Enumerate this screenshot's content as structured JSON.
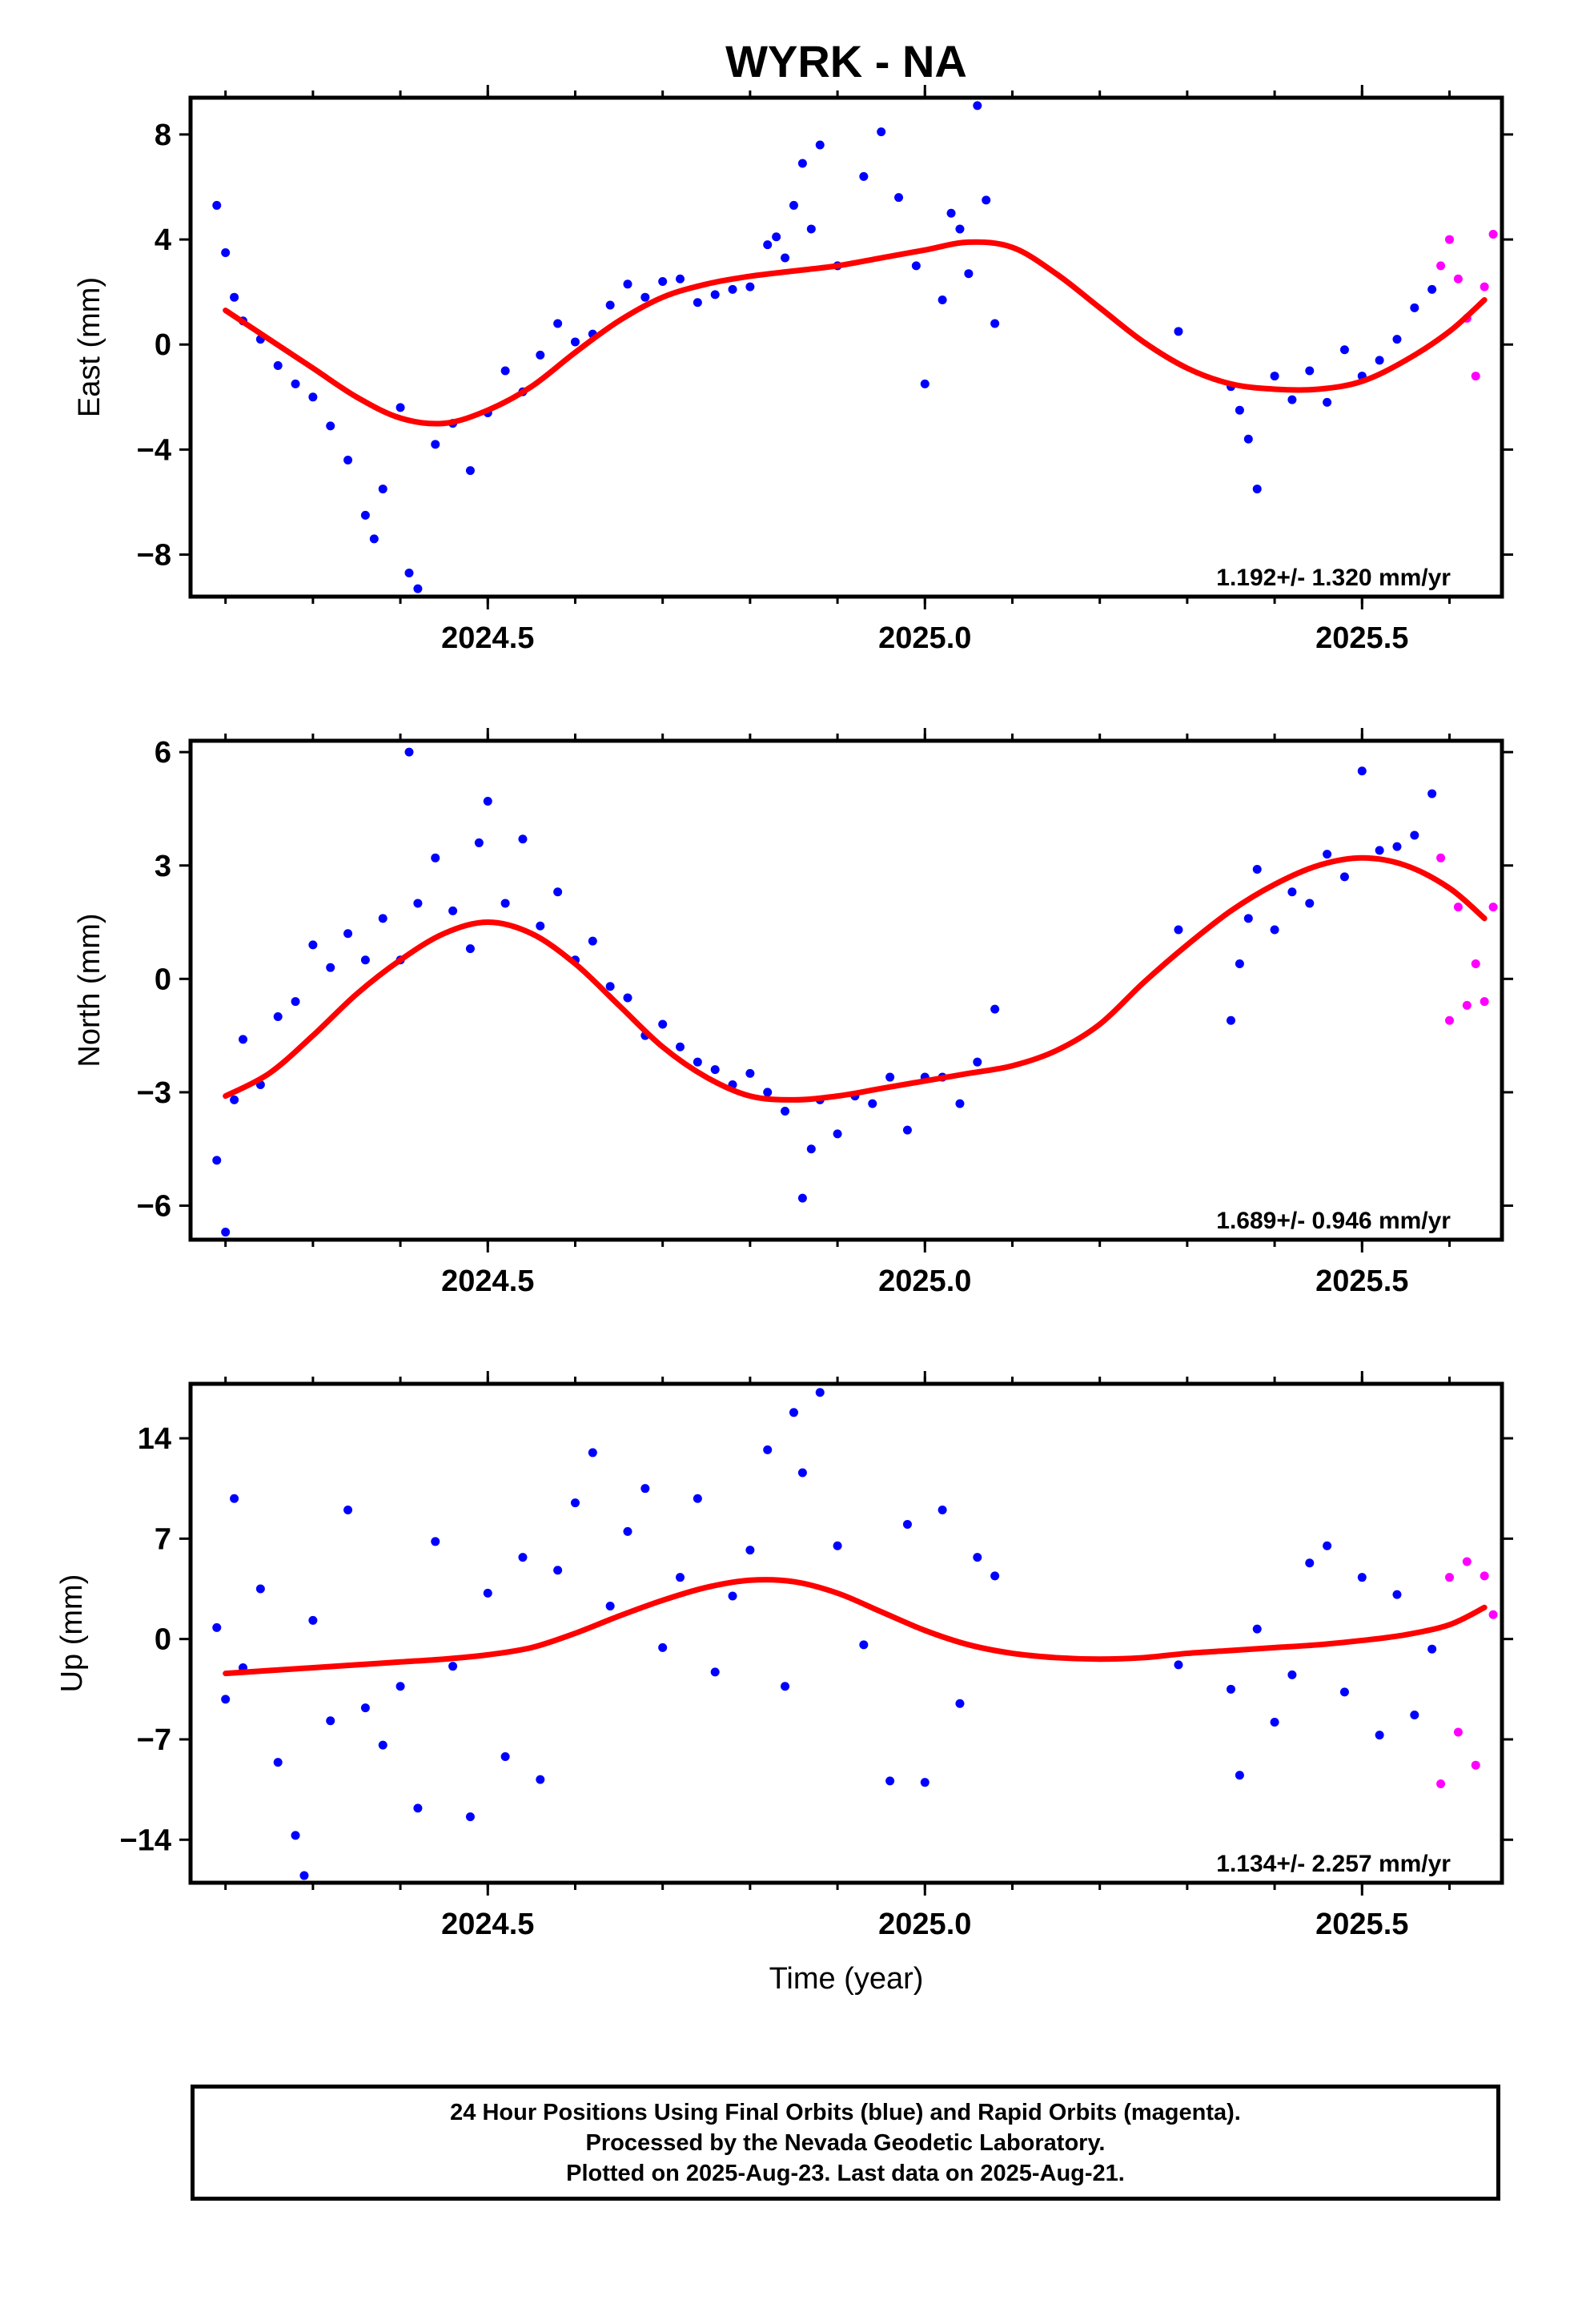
{
  "figure": {
    "title": "WYRK - NA",
    "xlabel": "Time (year)",
    "caption": [
      "24 Hour Positions Using Final Orbits (blue) and Rapid Orbits (magenta).",
      "Processed by the Nevada Geodetic Laboratory.",
      "Plotted on 2025-Aug-23. Last data on 2025-Aug-21."
    ]
  },
  "colors": {
    "final": "#0000ff",
    "rapid": "#ff00ff",
    "fit": "#ff0000",
    "frame": "#000000"
  },
  "chart_data": [
    {
      "type": "scatter",
      "ylabel": "East (mm)",
      "rate": "1.192+/- 1.320 mm/yr",
      "xlim": [
        2024.16,
        2025.66
      ],
      "ylim": [
        -9.6,
        9.4
      ],
      "xticks": [
        2024.5,
        2025.0,
        2025.5
      ],
      "xtick_labels": [
        "2024.5",
        "2025.0",
        "2025.5"
      ],
      "yticks": [
        -8,
        -4,
        0,
        4,
        8
      ],
      "ytick_labels": [
        "−8",
        "−4",
        "0",
        "4",
        "8"
      ],
      "series": [
        {
          "role": "final",
          "x": [
            2024.19,
            2024.2,
            2024.21,
            2024.22,
            2024.24,
            2024.26,
            2024.28,
            2024.3,
            2024.32,
            2024.34,
            2024.36,
            2024.37,
            2024.38,
            2024.4,
            2024.41,
            2024.42,
            2024.44,
            2024.46,
            2024.48,
            2024.5,
            2024.52,
            2024.54,
            2024.56,
            2024.58,
            2024.6,
            2024.62,
            2024.64,
            2024.66,
            2024.68,
            2024.7,
            2024.72,
            2024.74,
            2024.76,
            2024.78,
            2024.8,
            2024.82,
            2024.83,
            2024.84,
            2024.85,
            2024.86,
            2024.87,
            2024.88,
            2024.9,
            2024.93,
            2024.95,
            2024.97,
            2024.99,
            2025.0,
            2025.02,
            2025.03,
            2025.04,
            2025.05,
            2025.06,
            2025.07,
            2025.08,
            2025.29,
            2025.35,
            2025.36,
            2025.37,
            2025.38,
            2025.4,
            2025.42,
            2025.44,
            2025.46,
            2025.48,
            2025.5,
            2025.52,
            2025.54,
            2025.56,
            2025.58
          ],
          "y": [
            5.3,
            3.5,
            1.8,
            0.9,
            0.2,
            -0.8,
            -1.5,
            -2.0,
            -3.1,
            -4.4,
            -6.5,
            -7.4,
            -5.5,
            -2.4,
            -8.7,
            -9.3,
            -3.8,
            -3.0,
            -4.8,
            -2.6,
            -1.0,
            -1.8,
            -0.4,
            0.8,
            0.1,
            0.4,
            1.5,
            2.3,
            1.8,
            2.4,
            2.5,
            1.6,
            1.9,
            2.1,
            2.2,
            3.8,
            4.1,
            3.3,
            5.3,
            6.9,
            4.4,
            7.6,
            3.0,
            6.4,
            8.1,
            5.6,
            3.0,
            -1.5,
            1.7,
            5.0,
            4.4,
            2.7,
            9.1,
            5.5,
            0.8,
            0.5,
            -1.6,
            -2.5,
            -3.6,
            -5.5,
            -1.2,
            -2.1,
            -1.0,
            -2.2,
            -0.2,
            -1.2,
            -0.6,
            0.2,
            1.4,
            2.1
          ]
        },
        {
          "role": "rapid",
          "x": [
            2025.59,
            2025.6,
            2025.61,
            2025.62,
            2025.63,
            2025.64,
            2025.65
          ],
          "y": [
            3.0,
            4.0,
            2.5,
            1.0,
            -1.2,
            2.2,
            4.2
          ]
        },
        {
          "role": "fit",
          "x": [
            2024.2,
            2024.25,
            2024.3,
            2024.35,
            2024.4,
            2024.45,
            2024.5,
            2024.55,
            2024.6,
            2024.65,
            2024.7,
            2024.75,
            2024.8,
            2024.85,
            2024.9,
            2024.95,
            2025.0,
            2025.05,
            2025.1,
            2025.15,
            2025.2,
            2025.25,
            2025.3,
            2025.35,
            2025.4,
            2025.45,
            2025.5,
            2025.55,
            2025.6,
            2025.64
          ],
          "y": [
            1.3,
            0.2,
            -0.9,
            -2.0,
            -2.8,
            -3.0,
            -2.5,
            -1.6,
            -0.3,
            0.9,
            1.8,
            2.3,
            2.6,
            2.8,
            3.0,
            3.3,
            3.6,
            3.9,
            3.7,
            2.7,
            1.4,
            0.1,
            -0.9,
            -1.5,
            -1.7,
            -1.7,
            -1.4,
            -0.6,
            0.5,
            1.7
          ]
        }
      ]
    },
    {
      "type": "scatter",
      "ylabel": "North (mm)",
      "rate": "1.689+/- 0.946 mm/yr",
      "xlim": [
        2024.16,
        2025.66
      ],
      "ylim": [
        -6.9,
        6.3
      ],
      "xticks": [
        2024.5,
        2025.0,
        2025.5
      ],
      "xtick_labels": [
        "2024.5",
        "2025.0",
        "2025.5"
      ],
      "yticks": [
        -6,
        -3,
        0,
        3,
        6
      ],
      "ytick_labels": [
        "−6",
        "−3",
        "0",
        "3",
        "6"
      ],
      "series": [
        {
          "role": "final",
          "x": [
            2024.19,
            2024.2,
            2024.21,
            2024.22,
            2024.24,
            2024.26,
            2024.28,
            2024.3,
            2024.32,
            2024.34,
            2024.36,
            2024.38,
            2024.4,
            2024.41,
            2024.42,
            2024.44,
            2024.46,
            2024.48,
            2024.49,
            2024.5,
            2024.52,
            2024.54,
            2024.56,
            2024.58,
            2024.6,
            2024.62,
            2024.64,
            2024.66,
            2024.68,
            2024.7,
            2024.72,
            2024.74,
            2024.76,
            2024.78,
            2024.8,
            2024.82,
            2024.84,
            2024.86,
            2024.87,
            2024.88,
            2024.9,
            2024.92,
            2024.94,
            2024.96,
            2024.98,
            2025.0,
            2025.02,
            2025.04,
            2025.06,
            2025.08,
            2025.29,
            2025.35,
            2025.36,
            2025.37,
            2025.38,
            2025.4,
            2025.42,
            2025.44,
            2025.46,
            2025.48,
            2025.5,
            2025.52,
            2025.54,
            2025.56,
            2025.58
          ],
          "y": [
            -4.8,
            -6.7,
            -3.2,
            -1.6,
            -2.8,
            -1.0,
            -0.6,
            0.9,
            0.3,
            1.2,
            0.5,
            1.6,
            0.5,
            6.0,
            2.0,
            3.2,
            1.8,
            0.8,
            3.6,
            4.7,
            2.0,
            3.7,
            1.4,
            2.3,
            0.5,
            1.0,
            -0.2,
            -0.5,
            -1.5,
            -1.2,
            -1.8,
            -2.2,
            -2.4,
            -2.8,
            -2.5,
            -3.0,
            -3.5,
            -5.8,
            -4.5,
            -3.2,
            -4.1,
            -3.1,
            -3.3,
            -2.6,
            -4.0,
            -2.6,
            -2.6,
            -3.3,
            -2.2,
            -0.8,
            1.3,
            -1.1,
            0.4,
            1.6,
            2.9,
            1.3,
            2.3,
            2.0,
            3.3,
            2.7,
            5.5,
            3.4,
            3.5,
            3.8,
            4.9
          ]
        },
        {
          "role": "rapid",
          "x": [
            2025.59,
            2025.6,
            2025.61,
            2025.62,
            2025.63,
            2025.64,
            2025.65
          ],
          "y": [
            3.2,
            -1.1,
            1.9,
            -0.7,
            0.4,
            -0.6,
            1.9
          ]
        },
        {
          "role": "fit",
          "x": [
            2024.2,
            2024.25,
            2024.3,
            2024.35,
            2024.4,
            2024.45,
            2024.5,
            2024.55,
            2024.6,
            2024.65,
            2024.7,
            2024.75,
            2024.8,
            2024.85,
            2024.9,
            2024.95,
            2025.0,
            2025.05,
            2025.1,
            2025.15,
            2025.2,
            2025.25,
            2025.3,
            2025.35,
            2025.4,
            2025.45,
            2025.5,
            2025.55,
            2025.6,
            2025.64
          ],
          "y": [
            -3.1,
            -2.5,
            -1.5,
            -0.4,
            0.5,
            1.2,
            1.5,
            1.2,
            0.4,
            -0.7,
            -1.8,
            -2.6,
            -3.1,
            -3.2,
            -3.1,
            -2.9,
            -2.7,
            -2.5,
            -2.3,
            -1.9,
            -1.2,
            -0.1,
            0.9,
            1.8,
            2.5,
            3.0,
            3.2,
            3.0,
            2.4,
            1.6
          ]
        }
      ]
    },
    {
      "type": "scatter",
      "ylabel": "Up (mm)",
      "rate": "1.134+/- 2.257 mm/yr",
      "xlim": [
        2024.16,
        2025.66
      ],
      "ylim": [
        -17.0,
        17.8
      ],
      "xticks": [
        2024.5,
        2025.0,
        2025.5
      ],
      "xtick_labels": [
        "2024.5",
        "2025.0",
        "2025.5"
      ],
      "yticks": [
        -14,
        -7,
        0,
        7,
        14
      ],
      "ytick_labels": [
        "−14",
        "−7",
        "0",
        "7",
        "14"
      ],
      "series": [
        {
          "role": "final",
          "x": [
            2024.19,
            2024.2,
            2024.21,
            2024.22,
            2024.24,
            2024.26,
            2024.28,
            2024.29,
            2024.3,
            2024.32,
            2024.34,
            2024.36,
            2024.38,
            2024.4,
            2024.42,
            2024.44,
            2024.46,
            2024.48,
            2024.5,
            2024.52,
            2024.54,
            2024.56,
            2024.58,
            2024.6,
            2024.62,
            2024.64,
            2024.66,
            2024.68,
            2024.7,
            2024.72,
            2024.74,
            2024.76,
            2024.78,
            2024.8,
            2024.82,
            2024.84,
            2024.85,
            2024.86,
            2024.88,
            2024.9,
            2024.93,
            2024.96,
            2024.98,
            2025.0,
            2025.02,
            2025.04,
            2025.06,
            2025.08,
            2025.29,
            2025.35,
            2025.36,
            2025.38,
            2025.4,
            2025.42,
            2025.44,
            2025.46,
            2025.48,
            2025.5,
            2025.52,
            2025.54,
            2025.56,
            2025.58
          ],
          "y": [
            0.8,
            -4.2,
            9.8,
            -2.0,
            3.5,
            -8.6,
            -13.7,
            -16.5,
            1.3,
            -5.7,
            9.0,
            -4.8,
            -7.4,
            -3.3,
            -11.8,
            6.8,
            -1.9,
            -12.4,
            3.2,
            -8.2,
            5.7,
            -9.8,
            4.8,
            9.5,
            13.0,
            2.3,
            7.5,
            10.5,
            -0.6,
            4.3,
            9.8,
            -2.3,
            3.0,
            6.2,
            13.2,
            -3.3,
            15.8,
            11.6,
            17.2,
            6.5,
            -0.4,
            -9.9,
            8.0,
            -10.0,
            9.0,
            -4.5,
            5.7,
            4.4,
            -1.8,
            -3.5,
            -9.5,
            0.7,
            -5.8,
            -2.5,
            5.3,
            6.5,
            -3.7,
            4.3,
            -6.7,
            3.1,
            -5.3,
            -0.7
          ]
        },
        {
          "role": "rapid",
          "x": [
            2025.59,
            2025.6,
            2025.61,
            2025.62,
            2025.63,
            2025.64,
            2025.65
          ],
          "y": [
            -10.1,
            4.3,
            -6.5,
            5.4,
            -8.8,
            4.4,
            1.7
          ]
        },
        {
          "role": "fit",
          "x": [
            2024.2,
            2024.25,
            2024.3,
            2024.35,
            2024.4,
            2024.45,
            2024.5,
            2024.55,
            2024.6,
            2024.65,
            2024.7,
            2024.75,
            2024.8,
            2024.85,
            2024.9,
            2024.95,
            2025.0,
            2025.05,
            2025.1,
            2025.15,
            2025.2,
            2025.25,
            2025.3,
            2025.35,
            2025.4,
            2025.45,
            2025.5,
            2025.55,
            2025.6,
            2025.64
          ],
          "y": [
            -2.4,
            -2.2,
            -2.0,
            -1.8,
            -1.6,
            -1.4,
            -1.1,
            -0.6,
            0.4,
            1.6,
            2.7,
            3.6,
            4.1,
            4.0,
            3.2,
            1.9,
            0.6,
            -0.4,
            -1.0,
            -1.3,
            -1.4,
            -1.3,
            -1.0,
            -0.8,
            -0.6,
            -0.4,
            -0.1,
            0.3,
            1.0,
            2.2
          ]
        }
      ]
    }
  ]
}
